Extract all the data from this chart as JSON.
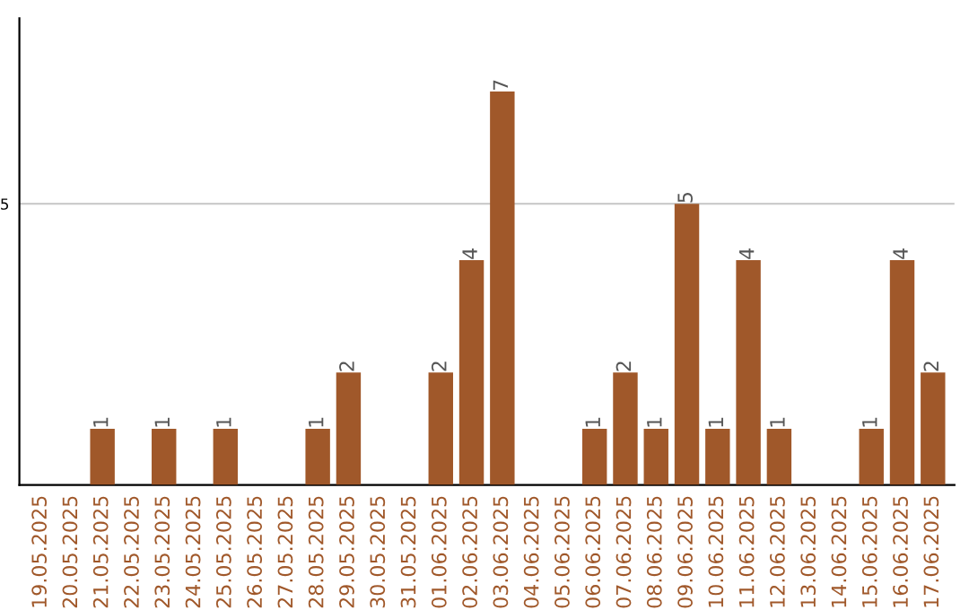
{
  "chart_data": {
    "type": "bar",
    "categories": [
      "19.05.2025",
      "20.05.2025",
      "21.05.2025",
      "22.05.2025",
      "23.05.2025",
      "24.05.2025",
      "25.05.2025",
      "26.05.2025",
      "27.05.2025",
      "28.05.2025",
      "29.05.2025",
      "30.05.2025",
      "31.05.2025",
      "01.06.2025",
      "02.06.2025",
      "03.06.2025",
      "04.06.2025",
      "05.06.2025",
      "06.06.2025",
      "07.06.2025",
      "08.06.2025",
      "09.06.2025",
      "10.06.2025",
      "11.06.2025",
      "12.06.2025",
      "13.06.2025",
      "14.06.2025",
      "15.06.2025",
      "16.06.2025",
      "17.06.2025"
    ],
    "values": [
      0,
      0,
      1,
      0,
      1,
      0,
      1,
      0,
      0,
      1,
      2,
      0,
      0,
      2,
      4,
      7,
      0,
      0,
      1,
      2,
      1,
      5,
      1,
      4,
      1,
      0,
      0,
      1,
      4,
      2
    ],
    "value_labels": [
      null,
      null,
      "1",
      null,
      "1",
      null,
      "1",
      null,
      null,
      "1",
      "2",
      null,
      null,
      "2",
      "4",
      "7",
      null,
      null,
      "1",
      "2",
      "1",
      "5",
      "1",
      "4",
      "1",
      null,
      null,
      "1",
      "4",
      "2"
    ],
    "color": "#a0582a",
    "ylim": [
      0,
      8.3
    ],
    "yticks": [
      5
    ],
    "grid": "y"
  }
}
